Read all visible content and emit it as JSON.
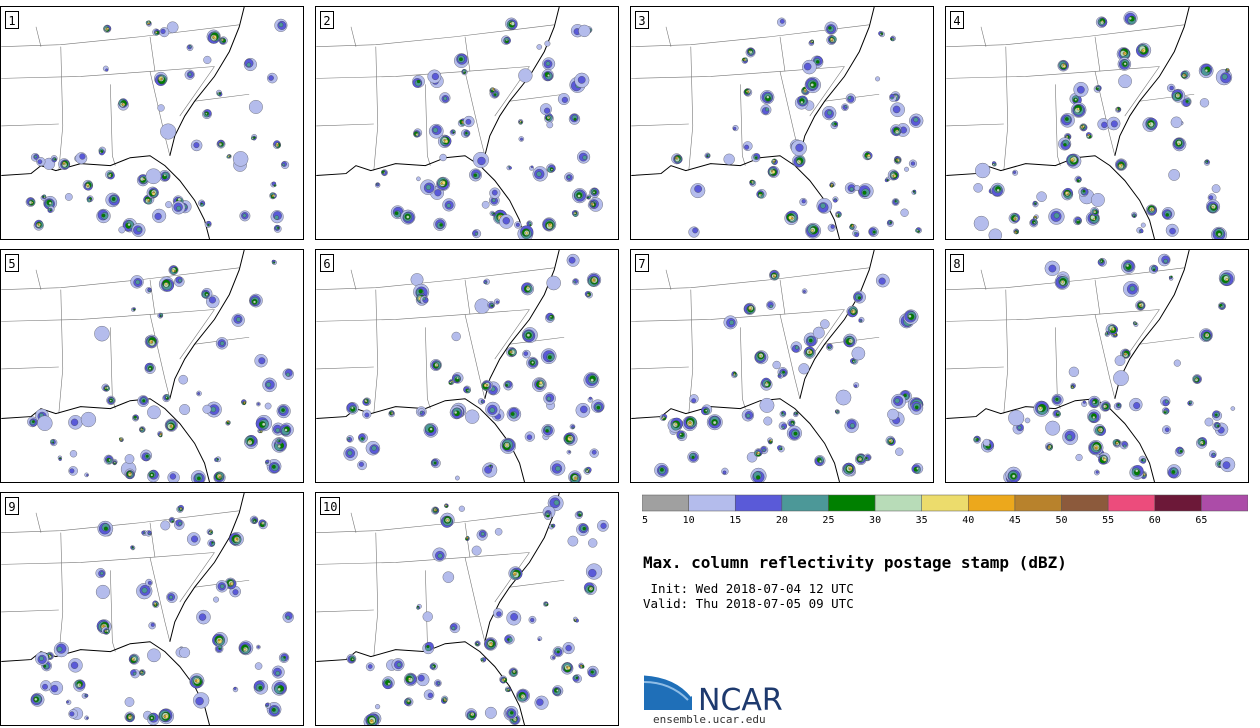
{
  "title": "Max. column reflectivity postage stamp (dBZ)",
  "init": " Init: Wed 2018-07-04 12 UTC",
  "valid": "Valid: Thu 2018-07-05 09 UTC",
  "logo_text": "NCAR",
  "site": "ensemble.ucar.edu",
  "colorbar": {
    "colors": [
      "#a0a0a0",
      "#b4bcec",
      "#5a5ad8",
      "#4c9898",
      "#008000",
      "#b8dcb8",
      "#ecdc6c",
      "#eca81c",
      "#b8822c",
      "#8c5a3c",
      "#ec4c7c",
      "#6c1838",
      "#ac4ca8"
    ],
    "ticks": [
      "5",
      "10",
      "15",
      "20",
      "25",
      "30",
      "35",
      "40",
      "45",
      "50",
      "55",
      "60",
      "65"
    ]
  },
  "panels": [
    {
      "label": "1",
      "seed": 11
    },
    {
      "label": "2",
      "seed": 23
    },
    {
      "label": "3",
      "seed": 37
    },
    {
      "label": "4",
      "seed": 41
    },
    {
      "label": "5",
      "seed": 53
    },
    {
      "label": "6",
      "seed": 67
    },
    {
      "label": "7",
      "seed": 79
    },
    {
      "label": "8",
      "seed": 83
    },
    {
      "label": "9",
      "seed": 97
    },
    {
      "label": "10",
      "seed": 101
    }
  ]
}
